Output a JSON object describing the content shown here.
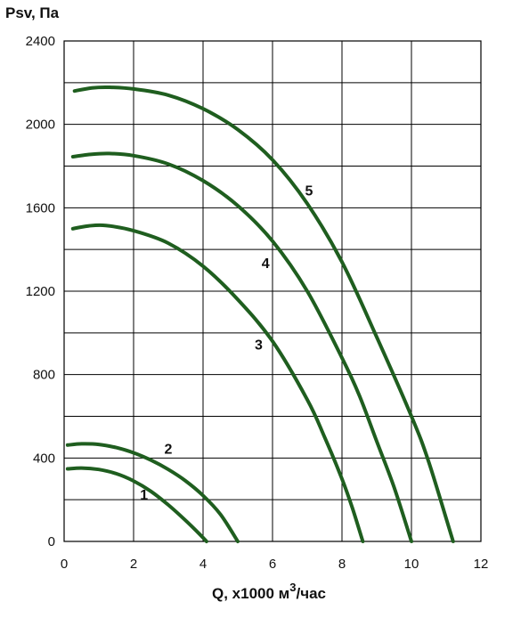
{
  "chart_data": {
    "type": "line",
    "ylabel": "Psv, Па",
    "xlabel_prefix": "Q, x1000 м",
    "xlabel_sup": "3",
    "xlabel_suffix": "/час",
    "xlim": [
      0,
      12
    ],
    "ylim": [
      0,
      2400
    ],
    "xticks": [
      0,
      2,
      4,
      6,
      8,
      10,
      12
    ],
    "yticks": [
      0,
      400,
      800,
      1200,
      1600,
      2000,
      2400
    ],
    "grid": true,
    "line_color": "#1f5e1f",
    "series": [
      {
        "name": "1",
        "label_pos": [
          2.3,
          200
        ],
        "x": [
          0.1,
          0.5,
          1.0,
          1.5,
          2.0,
          2.5,
          3.0,
          3.5,
          3.9,
          4.1
        ],
        "y": [
          348,
          352,
          345,
          325,
          290,
          240,
          175,
          100,
          35,
          0
        ]
      },
      {
        "name": "2",
        "label_pos": [
          3.0,
          420
        ],
        "x": [
          0.1,
          0.5,
          1.0,
          1.5,
          2.0,
          2.5,
          3.0,
          3.5,
          4.0,
          4.5,
          5.0
        ],
        "y": [
          462,
          468,
          465,
          450,
          425,
          390,
          345,
          290,
          220,
          130,
          0
        ]
      },
      {
        "name": "3",
        "label_pos": [
          5.6,
          920
        ],
        "x": [
          0.25,
          0.7,
          1.2,
          2.0,
          3.0,
          4.0,
          5.0,
          6.0,
          7.0,
          7.5,
          8.0,
          8.3,
          8.6
        ],
        "y": [
          1500,
          1513,
          1515,
          1490,
          1430,
          1320,
          1160,
          960,
          680,
          500,
          300,
          160,
          0
        ]
      },
      {
        "name": "4",
        "label_pos": [
          5.8,
          1310
        ],
        "x": [
          0.25,
          0.8,
          1.3,
          2.0,
          3.0,
          4.0,
          5.0,
          6.0,
          7.0,
          8.0,
          8.5,
          9.0,
          9.5,
          10.0
        ],
        "y": [
          1845,
          1857,
          1860,
          1850,
          1810,
          1730,
          1610,
          1440,
          1200,
          880,
          700,
          480,
          260,
          0
        ]
      },
      {
        "name": "5",
        "label_pos": [
          7.05,
          1660
        ],
        "x": [
          0.3,
          0.8,
          1.3,
          2.0,
          3.0,
          4.0,
          5.0,
          6.0,
          7.0,
          8.0,
          9.0,
          10.0,
          10.5,
          11.2
        ],
        "y": [
          2160,
          2175,
          2178,
          2170,
          2140,
          2075,
          1975,
          1830,
          1620,
          1340,
          980,
          600,
          380,
          0
        ]
      }
    ]
  }
}
